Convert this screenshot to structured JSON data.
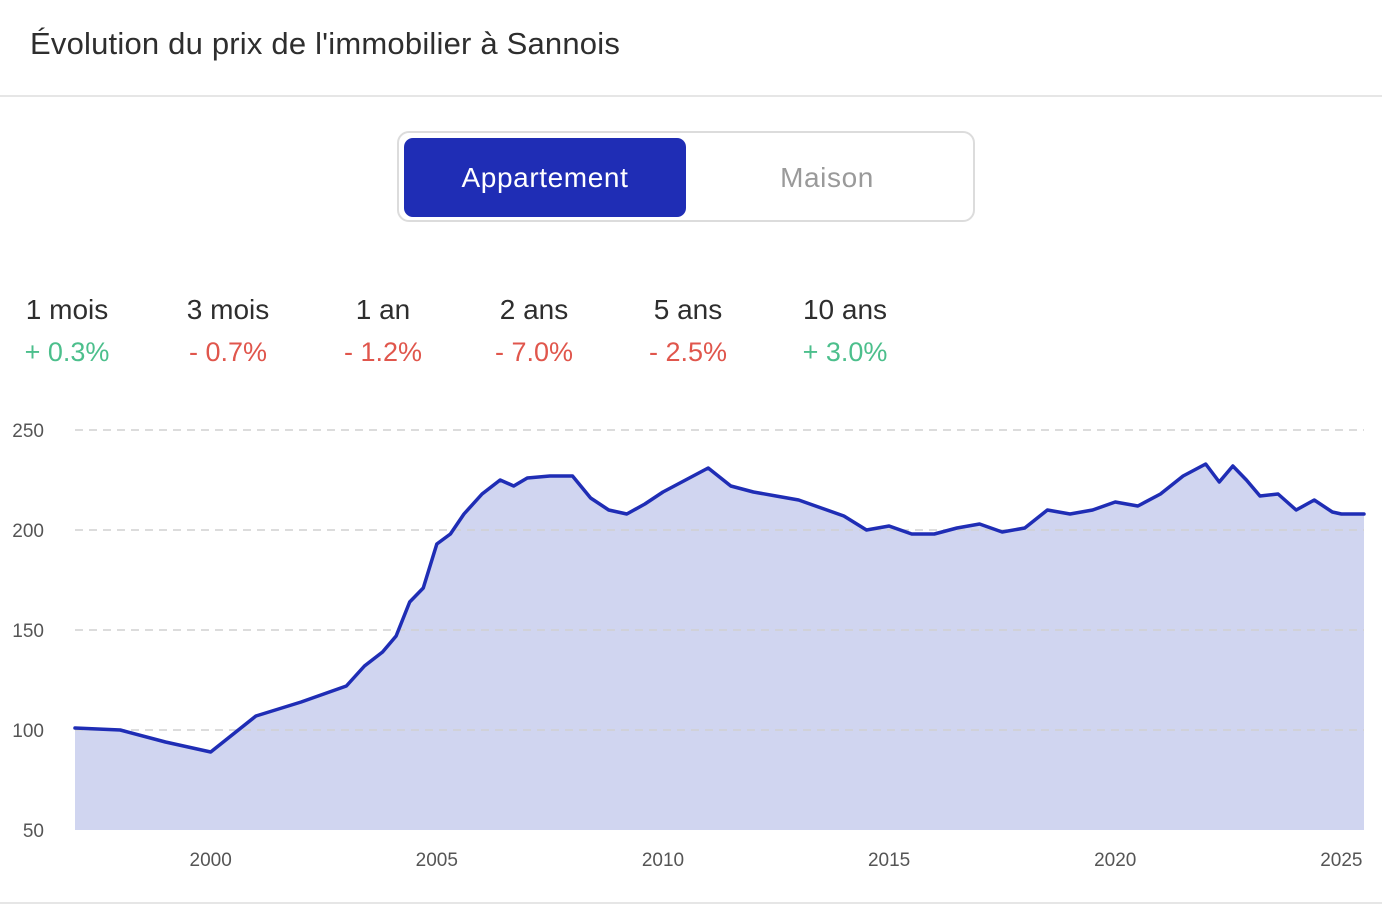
{
  "header": {
    "title": "Évolution du prix de l'immobilier à Sannois"
  },
  "toggle": {
    "active_label": "Appartement",
    "inactive_label": "Maison"
  },
  "stats": [
    {
      "label": "1 mois",
      "value": "+ 0.3%",
      "trend": "up"
    },
    {
      "label": "3 mois",
      "value": "- 0.7%",
      "trend": "down"
    },
    {
      "label": "1 an",
      "value": "- 1.2%",
      "trend": "down"
    },
    {
      "label": "2 ans",
      "value": "- 7.0%",
      "trend": "down"
    },
    {
      "label": "5 ans",
      "value": "- 2.5%",
      "trend": "down"
    },
    {
      "label": "10 ans",
      "value": "+ 3.0%",
      "trend": "up"
    }
  ],
  "colors": {
    "accent": "#1f2db5",
    "area_fill": "#d0d5f0",
    "up": "#4cbf8c",
    "down": "#e0564c",
    "grid": "#d0d0d0"
  },
  "chart_data": {
    "type": "area",
    "title": "",
    "xlabel": "",
    "ylabel": "",
    "ylim": [
      50,
      250
    ],
    "yticks": [
      50,
      100,
      150,
      200,
      250
    ],
    "xlim": [
      1997,
      2025.5
    ],
    "xticks": [
      2000,
      2005,
      2010,
      2015,
      2020,
      2025
    ],
    "grid": "horizontal dashed",
    "series": [
      {
        "name": "",
        "color": "#1f2db5",
        "points": [
          [
            1997.0,
            101
          ],
          [
            1998.0,
            100
          ],
          [
            1999.0,
            94
          ],
          [
            2000.0,
            89
          ],
          [
            2001.0,
            107
          ],
          [
            2002.0,
            114
          ],
          [
            2003.0,
            122
          ],
          [
            2003.4,
            132
          ],
          [
            2003.8,
            139
          ],
          [
            2004.1,
            147
          ],
          [
            2004.4,
            164
          ],
          [
            2004.7,
            171
          ],
          [
            2005.0,
            193
          ],
          [
            2005.3,
            198
          ],
          [
            2005.6,
            208
          ],
          [
            2006.0,
            218
          ],
          [
            2006.4,
            225
          ],
          [
            2006.7,
            222
          ],
          [
            2007.0,
            226
          ],
          [
            2007.5,
            227
          ],
          [
            2008.0,
            227
          ],
          [
            2008.4,
            216
          ],
          [
            2008.8,
            210
          ],
          [
            2009.2,
            208
          ],
          [
            2009.6,
            213
          ],
          [
            2010.0,
            219
          ],
          [
            2010.5,
            225
          ],
          [
            2011.0,
            231
          ],
          [
            2011.5,
            222
          ],
          [
            2012.0,
            219
          ],
          [
            2012.5,
            217
          ],
          [
            2013.0,
            215
          ],
          [
            2013.5,
            211
          ],
          [
            2014.0,
            207
          ],
          [
            2014.5,
            200
          ],
          [
            2015.0,
            202
          ],
          [
            2015.5,
            198
          ],
          [
            2016.0,
            198
          ],
          [
            2016.5,
            201
          ],
          [
            2017.0,
            203
          ],
          [
            2017.5,
            199
          ],
          [
            2018.0,
            201
          ],
          [
            2018.5,
            210
          ],
          [
            2019.0,
            208
          ],
          [
            2019.5,
            210
          ],
          [
            2020.0,
            214
          ],
          [
            2020.5,
            212
          ],
          [
            2021.0,
            218
          ],
          [
            2021.5,
            227
          ],
          [
            2022.0,
            233
          ],
          [
            2022.3,
            224
          ],
          [
            2022.6,
            232
          ],
          [
            2022.9,
            225
          ],
          [
            2023.2,
            217
          ],
          [
            2023.6,
            218
          ],
          [
            2024.0,
            210
          ],
          [
            2024.4,
            215
          ],
          [
            2024.8,
            209
          ],
          [
            2025.0,
            208
          ],
          [
            2025.5,
            208
          ]
        ]
      }
    ]
  }
}
